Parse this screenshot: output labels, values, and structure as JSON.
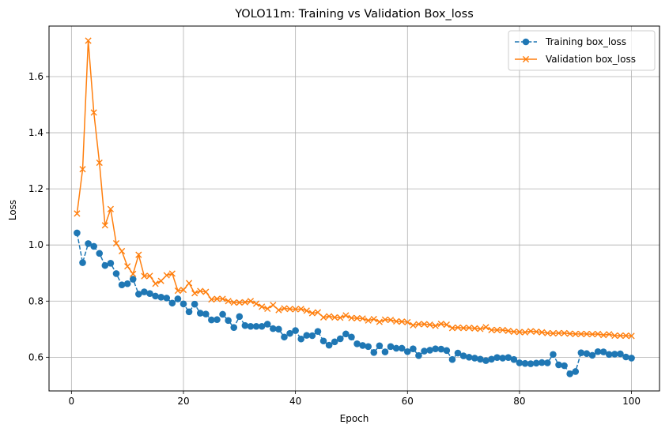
{
  "chart_data": {
    "type": "line",
    "title": "YOLO11m: Training vs Validation Box_loss",
    "xlabel": "Epoch",
    "ylabel": "Loss",
    "xlim": [
      -4,
      105
    ],
    "ylim": [
      0.48,
      1.78
    ],
    "xticks": [
      0,
      20,
      40,
      60,
      80,
      100
    ],
    "yticks": [
      0.6,
      0.8,
      1.0,
      1.2,
      1.4,
      1.6
    ],
    "grid": true,
    "legend_position": "top-right",
    "series": [
      {
        "name": "Training box_loss",
        "color": "#1f77b4",
        "marker": "circle",
        "linestyle": "dashed",
        "values": [
          1.043,
          0.937,
          1.005,
          0.995,
          0.97,
          0.927,
          0.935,
          0.898,
          0.858,
          0.862,
          0.878,
          0.825,
          0.833,
          0.827,
          0.818,
          0.814,
          0.811,
          0.793,
          0.808,
          0.79,
          0.762,
          0.789,
          0.757,
          0.754,
          0.733,
          0.734,
          0.753,
          0.731,
          0.706,
          0.745,
          0.713,
          0.71,
          0.71,
          0.71,
          0.718,
          0.702,
          0.7,
          0.672,
          0.685,
          0.695,
          0.665,
          0.678,
          0.677,
          0.692,
          0.658,
          0.643,
          0.655,
          0.666,
          0.683,
          0.672,
          0.648,
          0.642,
          0.638,
          0.617,
          0.641,
          0.619,
          0.638,
          0.632,
          0.632,
          0.62,
          0.63,
          0.606,
          0.622,
          0.625,
          0.63,
          0.629,
          0.624,
          0.592,
          0.615,
          0.605,
          0.6,
          0.597,
          0.593,
          0.588,
          0.593,
          0.599,
          0.597,
          0.599,
          0.592,
          0.58,
          0.578,
          0.577,
          0.579,
          0.581,
          0.58,
          0.61,
          0.573,
          0.57,
          0.541,
          0.549,
          0.616,
          0.613,
          0.607,
          0.62,
          0.619,
          0.61,
          0.611,
          0.612,
          0.601,
          0.597
        ]
      },
      {
        "name": "Validation box_loss",
        "color": "#ff7f0e",
        "marker": "x",
        "linestyle": "solid",
        "values": [
          1.112,
          1.27,
          1.728,
          1.472,
          1.293,
          1.07,
          1.128,
          1.006,
          0.978,
          0.924,
          0.897,
          0.965,
          0.889,
          0.89,
          0.862,
          0.872,
          0.892,
          0.898,
          0.837,
          0.84,
          0.864,
          0.828,
          0.836,
          0.833,
          0.806,
          0.808,
          0.808,
          0.8,
          0.795,
          0.795,
          0.796,
          0.8,
          0.791,
          0.78,
          0.773,
          0.786,
          0.768,
          0.774,
          0.772,
          0.771,
          0.772,
          0.766,
          0.757,
          0.76,
          0.742,
          0.746,
          0.742,
          0.741,
          0.749,
          0.74,
          0.739,
          0.738,
          0.731,
          0.736,
          0.726,
          0.734,
          0.733,
          0.728,
          0.727,
          0.725,
          0.714,
          0.718,
          0.718,
          0.716,
          0.712,
          0.719,
          0.716,
          0.704,
          0.706,
          0.704,
          0.705,
          0.703,
          0.701,
          0.707,
          0.697,
          0.697,
          0.697,
          0.694,
          0.691,
          0.69,
          0.689,
          0.693,
          0.691,
          0.689,
          0.686,
          0.685,
          0.686,
          0.686,
          0.684,
          0.683,
          0.683,
          0.683,
          0.682,
          0.683,
          0.679,
          0.682,
          0.677,
          0.677,
          0.677,
          0.676
        ]
      }
    ]
  }
}
